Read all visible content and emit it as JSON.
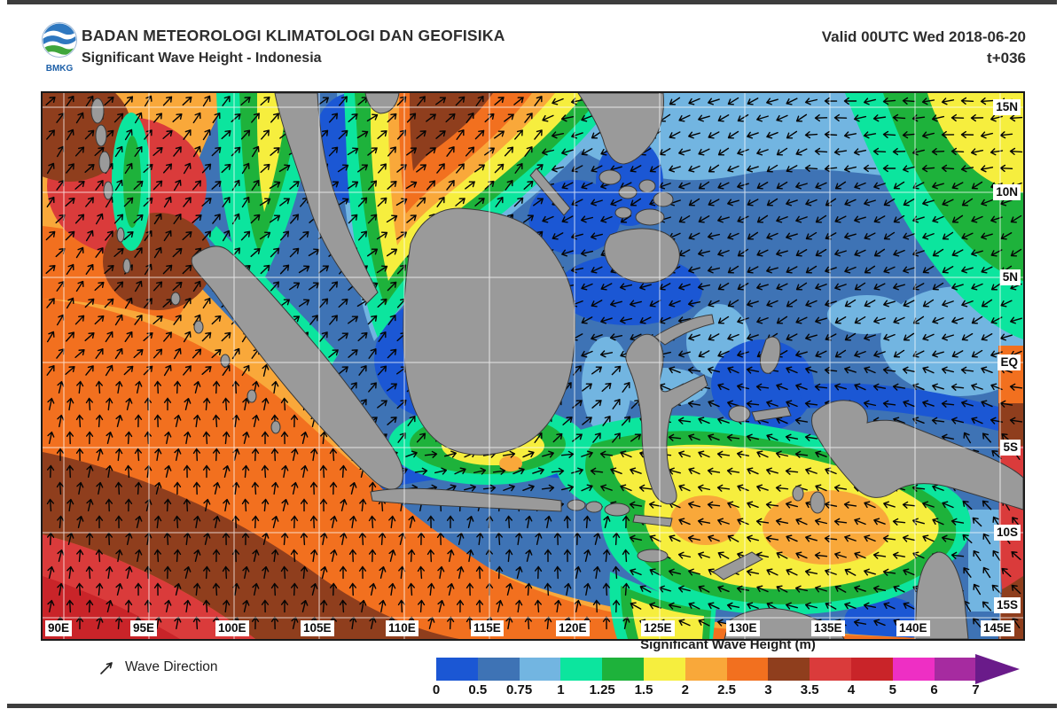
{
  "header": {
    "agency": "BADAN METEOROLOGI KLIMATOLOGI DAN GEOFISIKA",
    "product": "Significant Wave Height - Indonesia",
    "valid": "Valid 00UTC Wed 2018-06-20",
    "timestep": "t+036",
    "logo_text": "BMKG"
  },
  "map": {
    "lat_labels": [
      "15N",
      "10N",
      "5N",
      "EQ",
      "5S",
      "10S",
      "15S"
    ],
    "lon_labels": [
      "90E",
      "95E",
      "100E",
      "105E",
      "110E",
      "115E",
      "120E",
      "125E",
      "130E",
      "135E",
      "140E",
      "145E"
    ],
    "land_color": "#9a9a9a",
    "grid_color": "#ffffff",
    "wave_direction_regions": {
      "bay_of_bengal": 40,
      "indian_ocean": 5,
      "south_china_sea": 45,
      "gulf_of_thailand": 50,
      "philippine_sea": 245,
      "pacific_northeast": 265,
      "sulu_celebes": 250,
      "java_sea": 75,
      "banda_sea": 285,
      "timor_arafura": 290,
      "coral_sea": 320
    }
  },
  "legend": {
    "wave_direction_label": "Wave Direction",
    "title": "Significant Wave Height (m)",
    "scale_labels": [
      "0",
      "0.5",
      "0.75",
      "1",
      "1.25",
      "1.5",
      "2",
      "2.5",
      "3",
      "3.5",
      "4",
      "5",
      "6",
      "7"
    ],
    "segment_colors": [
      "#1b57d4",
      "#3e73b5",
      "#72b5e1",
      "#0ce59e",
      "#1eb23b",
      "#f6ee3e",
      "#f9a83a",
      "#f2701f",
      "#8f3e1d",
      "#da3b3b",
      "#c92429",
      "#ee2fc4",
      "#a62ba0"
    ],
    "overflow_color": "#6a1b8a"
  }
}
